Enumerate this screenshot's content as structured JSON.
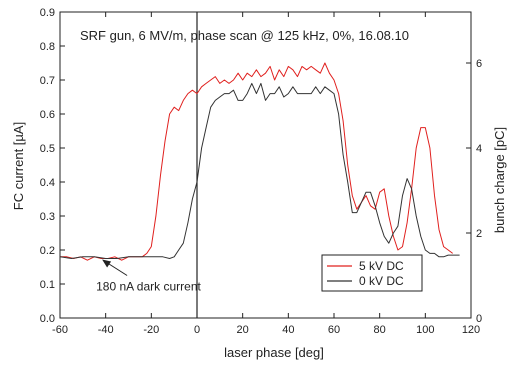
{
  "chart_data": {
    "type": "line",
    "title": "SRF gun, 6 MV/m, phase scan @ 125 kHz, 0%, 16.08.10",
    "xlabel": "laser phase [deg]",
    "ylabel": "FC current [µA]",
    "y2label": "bunch charge [pC]",
    "xlim": [
      -60,
      120
    ],
    "ylim": [
      0,
      0.9
    ],
    "y2lim": [
      0,
      7.2
    ],
    "xticks": [
      "-60",
      "-40",
      "-20",
      "0",
      "20",
      "40",
      "60",
      "80",
      "100",
      "120"
    ],
    "yticks": [
      "0.0",
      "0.1",
      "0.2",
      "0.3",
      "0.4",
      "0.5",
      "0.6",
      "0.7",
      "0.8",
      "0.9"
    ],
    "y2ticks": [
      "0",
      "2",
      "4",
      "6"
    ],
    "grid": false,
    "legend_position": "bottom-right",
    "vertical_marker_x": 0,
    "annotation": {
      "text": "180 nA dark current",
      "arrow_to": [
        -42,
        0.175
      ]
    },
    "series": [
      {
        "name": "5 kV DC",
        "color": "#e0201e",
        "x": [
          -60,
          -57,
          -54,
          -51,
          -48,
          -45,
          -42,
          -39,
          -36,
          -33,
          -30,
          -27,
          -24,
          -22,
          -20,
          -18,
          -16,
          -14,
          -12,
          -10,
          -8,
          -6,
          -4,
          -2,
          0,
          2,
          4,
          6,
          8,
          10,
          12,
          14,
          16,
          18,
          20,
          22,
          24,
          26,
          28,
          30,
          32,
          34,
          36,
          38,
          40,
          42,
          44,
          46,
          48,
          50,
          52,
          54,
          56,
          58,
          60,
          62,
          64,
          66,
          68,
          70,
          72,
          74,
          76,
          78,
          80,
          82,
          84,
          86,
          88,
          90,
          92,
          94,
          96,
          98,
          100,
          102,
          104,
          106,
          108,
          110,
          112
        ],
        "y": [
          0.18,
          0.18,
          0.175,
          0.18,
          0.17,
          0.18,
          0.175,
          0.175,
          0.18,
          0.17,
          0.18,
          0.18,
          0.18,
          0.19,
          0.21,
          0.3,
          0.42,
          0.52,
          0.6,
          0.62,
          0.61,
          0.64,
          0.66,
          0.67,
          0.66,
          0.68,
          0.69,
          0.7,
          0.71,
          0.69,
          0.7,
          0.69,
          0.7,
          0.72,
          0.7,
          0.72,
          0.71,
          0.73,
          0.71,
          0.72,
          0.74,
          0.7,
          0.73,
          0.71,
          0.74,
          0.73,
          0.71,
          0.74,
          0.73,
          0.74,
          0.73,
          0.72,
          0.75,
          0.72,
          0.7,
          0.66,
          0.58,
          0.45,
          0.36,
          0.32,
          0.34,
          0.36,
          0.33,
          0.32,
          0.37,
          0.38,
          0.3,
          0.24,
          0.2,
          0.21,
          0.28,
          0.38,
          0.5,
          0.56,
          0.56,
          0.5,
          0.36,
          0.26,
          0.21,
          0.2,
          0.19
        ]
      },
      {
        "name": "0 kV DC",
        "color": "#333333",
        "x": [
          -60,
          -55,
          -50,
          -45,
          -40,
          -35,
          -30,
          -25,
          -20,
          -15,
          -12,
          -10,
          -8,
          -6,
          -4,
          -2,
          0,
          2,
          4,
          6,
          8,
          10,
          12,
          14,
          16,
          18,
          20,
          22,
          24,
          26,
          28,
          30,
          32,
          34,
          36,
          38,
          40,
          42,
          44,
          46,
          48,
          50,
          52,
          54,
          56,
          58,
          60,
          62,
          64,
          66,
          68,
          70,
          72,
          74,
          76,
          78,
          80,
          82,
          84,
          86,
          88,
          90,
          92,
          94,
          96,
          98,
          100,
          102,
          104,
          106,
          108,
          110,
          112,
          115
        ],
        "y": [
          0.18,
          0.175,
          0.18,
          0.18,
          0.175,
          0.175,
          0.18,
          0.18,
          0.18,
          0.18,
          0.175,
          0.18,
          0.2,
          0.22,
          0.28,
          0.35,
          0.4,
          0.5,
          0.56,
          0.62,
          0.64,
          0.65,
          0.66,
          0.66,
          0.67,
          0.64,
          0.64,
          0.66,
          0.69,
          0.66,
          0.69,
          0.64,
          0.66,
          0.66,
          0.68,
          0.65,
          0.66,
          0.68,
          0.66,
          0.66,
          0.66,
          0.66,
          0.68,
          0.66,
          0.68,
          0.67,
          0.66,
          0.6,
          0.48,
          0.4,
          0.31,
          0.31,
          0.34,
          0.37,
          0.37,
          0.33,
          0.28,
          0.24,
          0.22,
          0.25,
          0.27,
          0.36,
          0.41,
          0.38,
          0.3,
          0.24,
          0.2,
          0.19,
          0.19,
          0.18,
          0.18,
          0.185,
          0.185,
          0.185
        ]
      }
    ]
  }
}
